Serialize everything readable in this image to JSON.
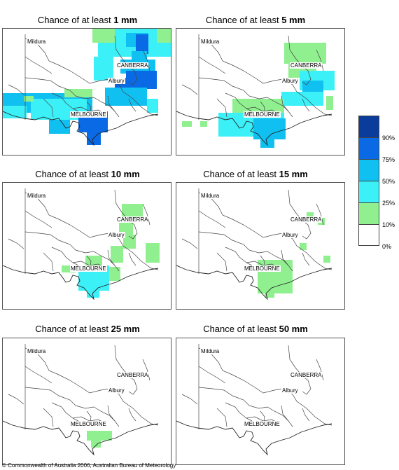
{
  "panels": [
    {
      "title_prefix": "Chance of at least ",
      "title_value": "1 mm"
    },
    {
      "title_prefix": "Chance of at least ",
      "title_value": "5 mm"
    },
    {
      "title_prefix": "Chance of at least ",
      "title_value": "10 mm"
    },
    {
      "title_prefix": "Chance of at least ",
      "title_value": "15 mm"
    },
    {
      "title_prefix": "Chance of at least ",
      "title_value": "25 mm"
    },
    {
      "title_prefix": "Chance of at least ",
      "title_value": "50 mm"
    }
  ],
  "cities": {
    "mildura": "Mildura",
    "canberra": "CANBERRA",
    "albury": "Albury",
    "melbourne": "MELBOURNE"
  },
  "legend": {
    "labels": [
      "90%",
      "75%",
      "50%",
      "25%",
      "10%",
      "0%"
    ],
    "colors": [
      "#0a3c9c",
      "#0a6ae6",
      "#10c0f0",
      "#3cf0f8",
      "#90f090",
      "#ffffff"
    ]
  },
  "copyright": "© Commonwealth of Australia 2006, Australian Bureau of Meteorology"
}
